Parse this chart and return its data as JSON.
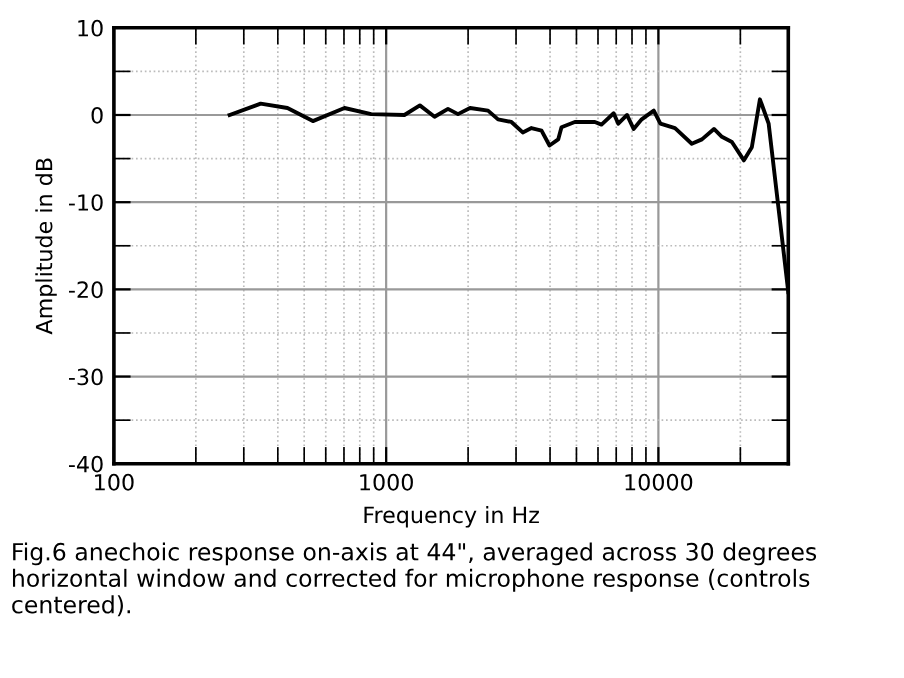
{
  "chart_data": {
    "type": "line",
    "xlabel": "Frequency in Hz",
    "ylabel": "Amplitude in dB",
    "x": [
      266,
      346,
      434,
      538,
      703,
      881,
      1167,
      1330,
      1506,
      1687,
      1836,
      2033,
      2367,
      2576,
      2884,
      3175,
      3418,
      3722,
      3981,
      4285,
      4406,
      4932,
      5844,
      6180,
      6850,
      7124,
      7670,
      8110,
      8682,
      9616,
      10170,
      11510,
      13260,
      14450,
      16000,
      17110,
      18620,
      20610,
      22040,
      23600,
      25410,
      30000
    ],
    "series": [
      {
        "color": "#000000",
        "values": [
          0,
          1.3,
          0.8,
          -0.7,
          0.8,
          0.1,
          0,
          1.1,
          -0.2,
          0.7,
          0.1,
          0.8,
          0.5,
          -0.5,
          -0.8,
          -2.0,
          -1.5,
          -1.8,
          -3.5,
          -2.8,
          -1.4,
          -0.8,
          -0.8,
          -1.1,
          0.2,
          -1.0,
          0,
          -1.6,
          -0.5,
          0.5,
          -1.0,
          -1.5,
          -3.3,
          -2.8,
          -1.6,
          -2.5,
          -3.1,
          -5.2,
          -3.7,
          1.8,
          -1.0,
          -20.3
        ]
      }
    ],
    "log": "x",
    "xlim": [
      100,
      30000
    ],
    "xticks": [
      100,
      1000,
      10000
    ],
    "ylim": [
      -40,
      10
    ],
    "yticks": [
      -40,
      -30,
      -20,
      -10,
      0,
      10
    ],
    "grid": true,
    "marker": "none",
    "line_style": "solid",
    "legend": false,
    "annotations": [
      "Fig.6 anechoic response on-axis at 44\", averaged across 30 degrees horizontal window and corrected for microphone response (controls centered)."
    ]
  }
}
